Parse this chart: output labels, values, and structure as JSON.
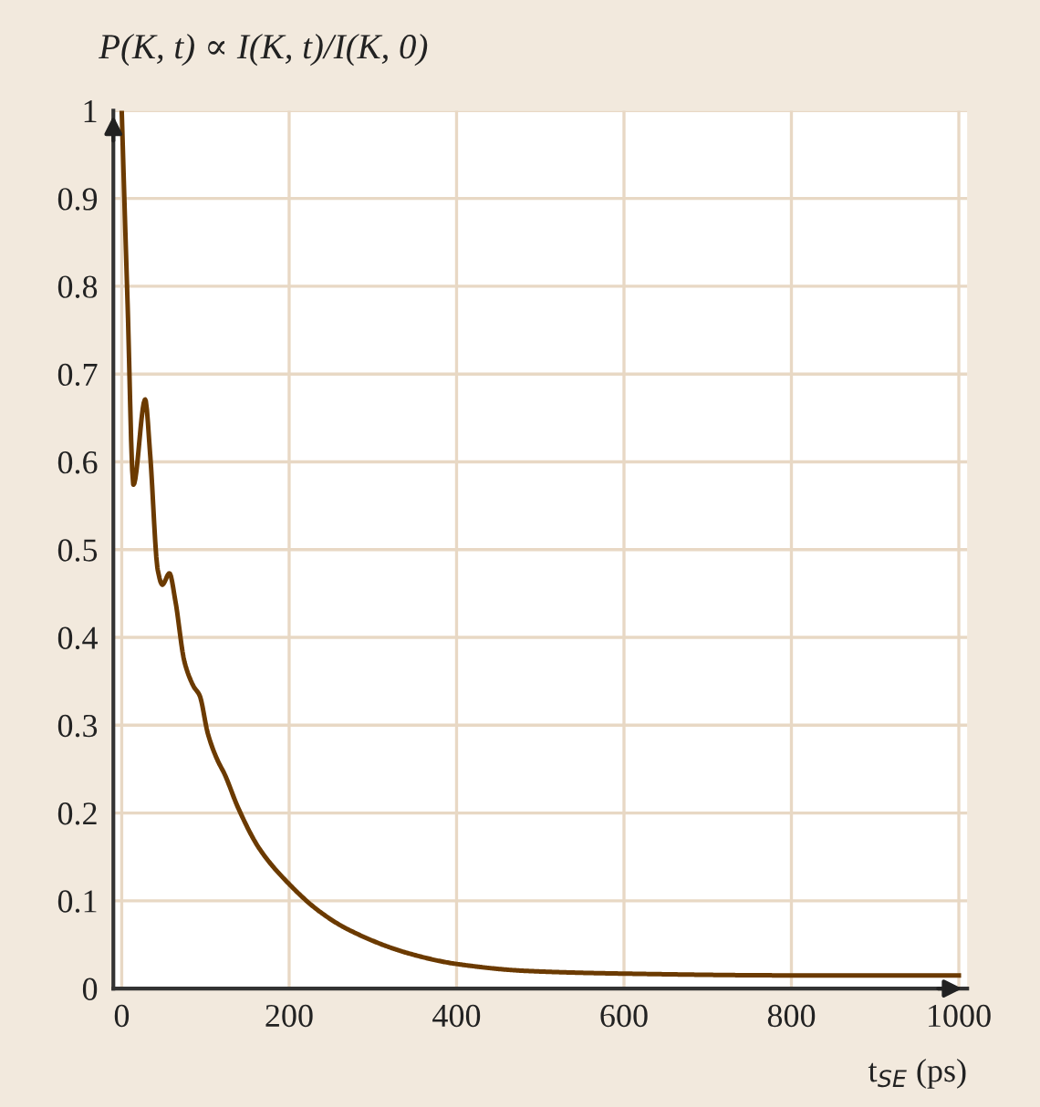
{
  "chart_data": {
    "type": "line",
    "title": "P(K, t) ∝ I(K, t)/I(K, 0)",
    "xlabel": "t$_{SE}$ (ps)",
    "series": [
      {
        "color": "#6b3a00",
        "x": [
          0,
          7,
          14,
          28,
          34,
          43,
          48.5,
          57,
          64,
          75,
          86,
          93,
          103,
          114,
          123,
          139,
          164,
          200,
          236,
          271,
          343,
          400,
          485,
          600,
          800,
          1000
        ],
        "values": [
          1,
          0.78,
          0.574,
          0.671,
          0.608,
          0.477,
          0.46,
          0.473,
          0.442,
          0.372,
          0.344,
          0.334,
          0.29,
          0.261,
          0.244,
          0.206,
          0.16,
          0.119,
          0.088,
          0.067,
          0.04,
          0.028,
          0.02,
          0.017,
          0.015,
          0.015
        ]
      }
    ],
    "xlim": [
      -10,
      1010
    ],
    "ylim": [
      0,
      1
    ],
    "xticks": [
      0,
      200,
      400,
      600,
      800,
      1000
    ],
    "yticks": [
      0,
      0.1,
      0.2,
      0.3,
      0.4,
      0.5,
      0.6,
      0.7,
      0.8,
      0.9,
      1
    ],
    "grid": true,
    "legend": false,
    "marker": "none",
    "line_style": "solid"
  }
}
